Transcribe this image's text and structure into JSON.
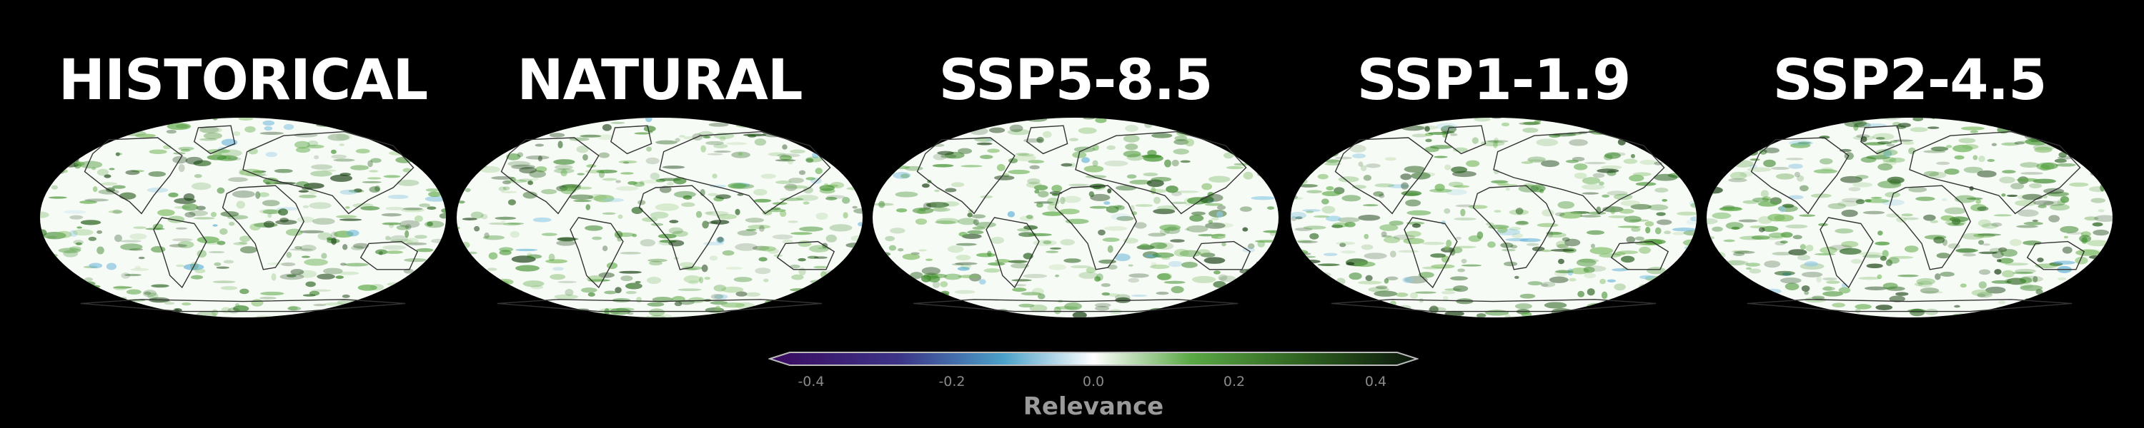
{
  "panels": [
    {
      "title": "HISTORICAL"
    },
    {
      "title": "NATURAL"
    },
    {
      "title": "SSP5-8.5"
    },
    {
      "title": "SSP1-1.9"
    },
    {
      "title": "SSP2-4.5"
    }
  ],
  "colorbar": {
    "label": "Relevance",
    "ticks": [
      "-0.4",
      "-0.2",
      "0.0",
      "0.2",
      "0.4"
    ],
    "range": [
      -0.4,
      0.4
    ],
    "colors": [
      "#3a0a5e",
      "#4a3a8a",
      "#4aa0c8",
      "#ffffff",
      "#4a9a3a",
      "#2a5a1a",
      "#0a1a0a"
    ]
  }
}
